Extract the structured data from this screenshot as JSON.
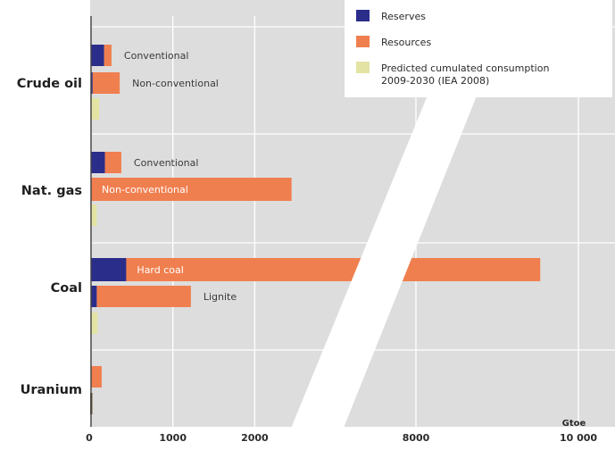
{
  "chart_data": {
    "type": "bar",
    "orientation": "horizontal",
    "stacked": true,
    "axis_break": {
      "from": 2500,
      "to": 7000
    },
    "xlim": [
      0,
      10000
    ],
    "xticks": [
      {
        "value": 0,
        "label": "0"
      },
      {
        "value": 1000,
        "label": "1000"
      },
      {
        "value": 2000,
        "label": "2000"
      },
      {
        "value": 8000,
        "label": "8000"
      },
      {
        "value": 10000,
        "label": "10 000"
      }
    ],
    "x_unit": "Gtoe",
    "grid": true,
    "legend_position": "top-right",
    "categories": [
      "Crude oil",
      "Nat. gas",
      "Coal",
      "Uranium"
    ],
    "legend": [
      {
        "name": "Reserves",
        "color": "#2a2d8a"
      },
      {
        "name": "Resources",
        "color": "#f07f4f"
      },
      {
        "name": "Predicted cumulated consumption",
        "name2": "2009-2030 (IEA 2008)",
        "color": "#e3e4a4"
      }
    ],
    "bars": [
      {
        "category": "Crude oil",
        "label": "Conventional",
        "reserves": 160,
        "resources": 90,
        "consumption": null
      },
      {
        "category": "Crude oil",
        "label": "Non-conventional",
        "reserves": 20,
        "resources": 330,
        "consumption": null
      },
      {
        "category": "Crude oil",
        "label": "",
        "reserves": null,
        "resources": null,
        "consumption": 100
      },
      {
        "category": "Nat. gas",
        "label": "Conventional",
        "reserves": 170,
        "resources": 200,
        "consumption": null
      },
      {
        "category": "Nat. gas",
        "label": "Non-conventional",
        "reserves": 0,
        "resources": 2450,
        "consumption": null
      },
      {
        "category": "Nat. gas",
        "label": "",
        "reserves": null,
        "resources": null,
        "consumption": 70
      },
      {
        "category": "Coal",
        "label": "Hard coal",
        "reserves": 430,
        "resources": 9100,
        "consumption": null
      },
      {
        "category": "Coal",
        "label": "Lignite",
        "reserves": 70,
        "resources": 1150,
        "consumption": null
      },
      {
        "category": "Coal",
        "label": "",
        "reserves": null,
        "resources": null,
        "consumption": 80
      },
      {
        "category": "Uranium",
        "label": "",
        "reserves": 0,
        "resources": 130,
        "consumption": null
      }
    ]
  }
}
